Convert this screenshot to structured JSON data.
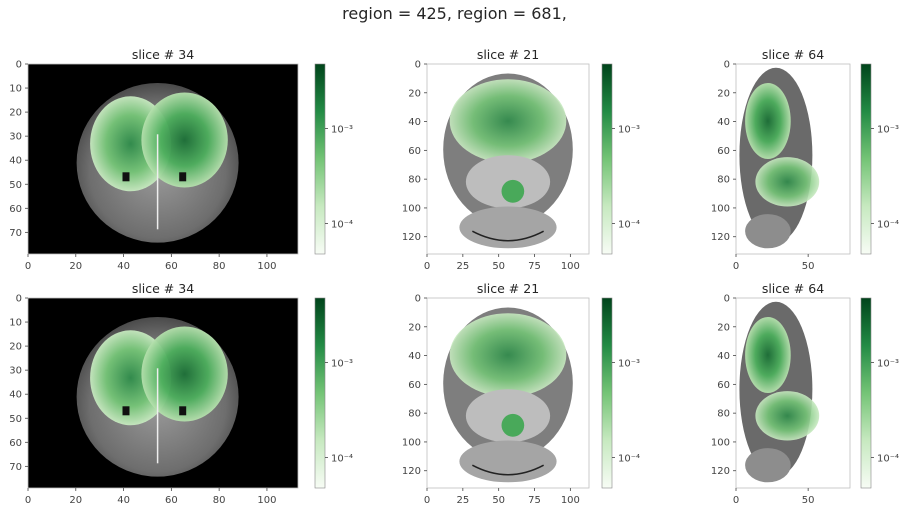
{
  "figure": {
    "suptitle": "region = 425,  region = 681,"
  },
  "chart_data": [
    {
      "type": "heatmap",
      "title": "slice # 34",
      "view": "coronal",
      "x_ticks": [
        0,
        20,
        40,
        60,
        80,
        100
      ],
      "y_ticks": [
        0,
        10,
        20,
        30,
        40,
        50,
        60,
        70
      ],
      "xlim": [
        0,
        113
      ],
      "ylim": [
        79,
        0
      ],
      "colormap": "Greens",
      "colorbar_ticks": [
        "10⁻⁴",
        "10⁻³"
      ],
      "colorbar_scale": "log"
    },
    {
      "type": "heatmap",
      "title": "slice # 21",
      "view": "axial",
      "x_ticks": [
        0,
        25,
        50,
        75,
        100
      ],
      "y_ticks": [
        0,
        20,
        40,
        60,
        80,
        100,
        120
      ],
      "xlim": [
        0,
        113
      ],
      "ylim": [
        132,
        0
      ],
      "colormap": "Greens",
      "colorbar_ticks": [
        "10⁻⁴",
        "10⁻³"
      ],
      "colorbar_scale": "log"
    },
    {
      "type": "heatmap",
      "title": "slice # 64",
      "view": "sagittal",
      "x_ticks": [
        0,
        50
      ],
      "y_ticks": [
        0,
        20,
        40,
        60,
        80,
        100,
        120
      ],
      "xlim": [
        0,
        79
      ],
      "ylim": [
        132,
        0
      ],
      "colormap": "Greens",
      "colorbar_ticks": [
        "10⁻⁴",
        "10⁻³"
      ],
      "colorbar_scale": "log"
    },
    {
      "type": "heatmap",
      "title": "slice # 34",
      "view": "coronal",
      "x_ticks": [
        0,
        20,
        40,
        60,
        80,
        100
      ],
      "y_ticks": [
        0,
        10,
        20,
        30,
        40,
        50,
        60,
        70
      ],
      "xlim": [
        0,
        113
      ],
      "ylim": [
        79,
        0
      ],
      "colormap": "Greens",
      "colorbar_ticks": [
        "10⁻⁴",
        "10⁻³"
      ],
      "colorbar_scale": "log"
    },
    {
      "type": "heatmap",
      "title": "slice # 21",
      "view": "axial",
      "x_ticks": [
        0,
        25,
        50,
        75,
        100
      ],
      "y_ticks": [
        0,
        20,
        40,
        60,
        80,
        100,
        120
      ],
      "xlim": [
        0,
        113
      ],
      "ylim": [
        132,
        0
      ],
      "colormap": "Greens",
      "colorbar_ticks": [
        "10⁻⁴",
        "10⁻³"
      ],
      "colorbar_scale": "log"
    },
    {
      "type": "heatmap",
      "title": "slice # 64",
      "view": "sagittal",
      "x_ticks": [
        0,
        50
      ],
      "y_ticks": [
        0,
        20,
        40,
        60,
        80,
        100,
        120
      ],
      "xlim": [
        0,
        79
      ],
      "ylim": [
        132,
        0
      ],
      "colormap": "Greens",
      "colorbar_ticks": [
        "10⁻⁴",
        "10⁻³"
      ],
      "colorbar_scale": "log"
    }
  ]
}
